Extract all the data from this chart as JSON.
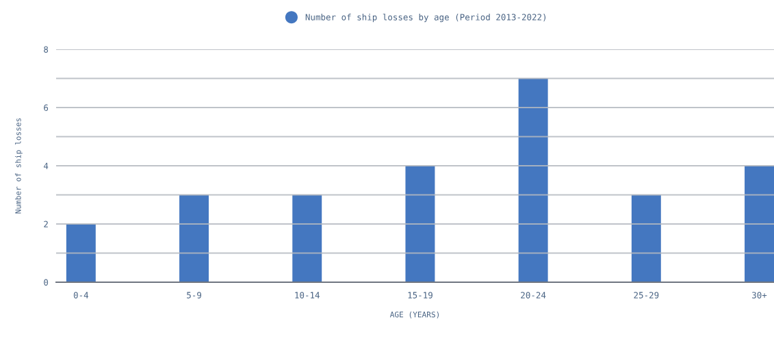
{
  "chart_data": {
    "type": "bar",
    "categories": [
      "0-4",
      "5-9",
      "10-14",
      "15-19",
      "20-24",
      "25-29",
      "30+"
    ],
    "series": [
      {
        "name": "Number of ship losses by age (Period 2013-2022)",
        "color": "#4477c0",
        "values": [
          2,
          3,
          3,
          4,
          7,
          3,
          4
        ]
      }
    ],
    "xlabel": "AGE (YEARS)",
    "ylabel": "Number of ship losses",
    "ylim": [
      0,
      8
    ],
    "yticks": [
      0,
      {
        "value": 1,
        "label": null
      },
      2,
      {
        "value": 3,
        "label": null
      },
      4,
      {
        "value": 5,
        "label": null
      },
      6,
      {
        "value": 7,
        "label": null
      },
      8
    ],
    "grid": "y",
    "legend": "top"
  }
}
